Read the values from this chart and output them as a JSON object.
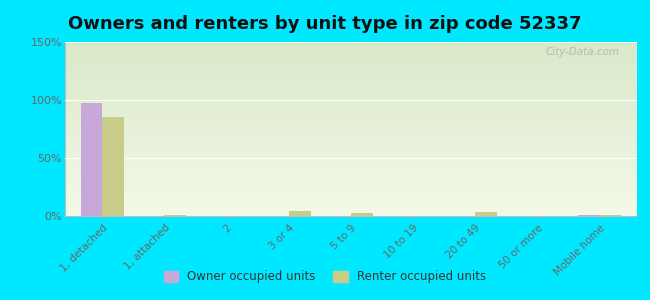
{
  "title": "Owners and renters by unit type in zip code 52337",
  "categories": [
    "1, detached",
    "1, attached",
    "2",
    "3 or 4",
    "5 to 9",
    "10 to 19",
    "20 to 49",
    "50 or more",
    "Mobile home"
  ],
  "owner_values": [
    97,
    0,
    0,
    0,
    0,
    0,
    0,
    0,
    1.2
  ],
  "renter_values": [
    85,
    1.2,
    0,
    4.5,
    2.5,
    0,
    3.8,
    0,
    1.2
  ],
  "owner_color": "#c8a8d8",
  "renter_color": "#c8cc88",
  "background_color": "#00e8ff",
  "plot_bg_top": "#d8e8c8",
  "plot_bg_bottom": "#f4f8e8",
  "ylim": [
    0,
    150
  ],
  "yticks": [
    0,
    50,
    100,
    150
  ],
  "ytick_labels": [
    "0%",
    "50%",
    "100%",
    "150%"
  ],
  "watermark": "City-Data.com",
  "legend_labels": [
    "Owner occupied units",
    "Renter occupied units"
  ],
  "bar_width": 0.35,
  "title_fontsize": 13
}
